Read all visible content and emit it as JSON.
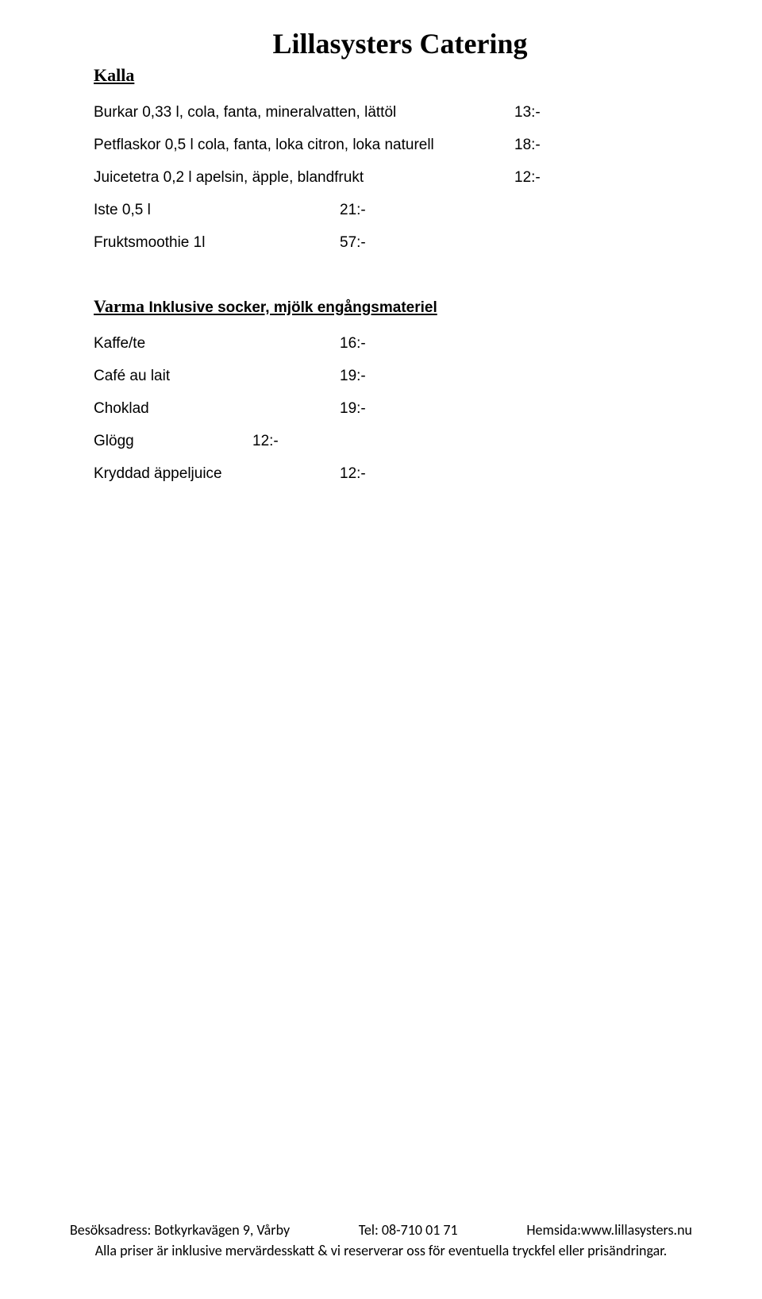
{
  "title": "Lillasysters Catering",
  "section_kalla": {
    "heading": "Kalla",
    "items_wide": [
      {
        "label": "Burkar 0,33 l, cola, fanta, mineralvatten, lättöl",
        "price": "13:-"
      },
      {
        "label": "Petflaskor 0,5 l cola, fanta, loka citron, loka naturell",
        "price": "18:-"
      },
      {
        "label": "Juicetetra 0,2 l apelsin, äpple, blandfrukt",
        "price": "12:-"
      }
    ],
    "items_narrow": [
      {
        "label": "Iste 0,5 l",
        "price": "21:-"
      },
      {
        "label": "Fruktsmoothie 1l",
        "price": "57:-"
      }
    ]
  },
  "section_varma": {
    "heading": "Varma ",
    "subtext": "Inklusive socker, mjölk engångsmateriel",
    "items_narrow": [
      {
        "label": "Kaffe/te",
        "price": "16:-"
      },
      {
        "label": "Café au lait",
        "price": "19:-"
      },
      {
        "label": "Choklad",
        "price": "19:-"
      }
    ],
    "items_narrower": [
      {
        "label": "Glögg",
        "price": "12:-"
      }
    ],
    "items_narrow2": [
      {
        "label": "Kryddad äppeljuice",
        "price": "12:-"
      }
    ]
  },
  "footer": {
    "address": "Besöksadress: Botkyrkavägen 9,  Vårby",
    "tel": "Tel: 08-710 01 71",
    "site": "Hemsida:www.lillasysters.nu",
    "disclaimer": "Alla priser är inklusive mervärdesskatt & vi reserverar oss för eventuella tryckfel eller prisändringar."
  }
}
